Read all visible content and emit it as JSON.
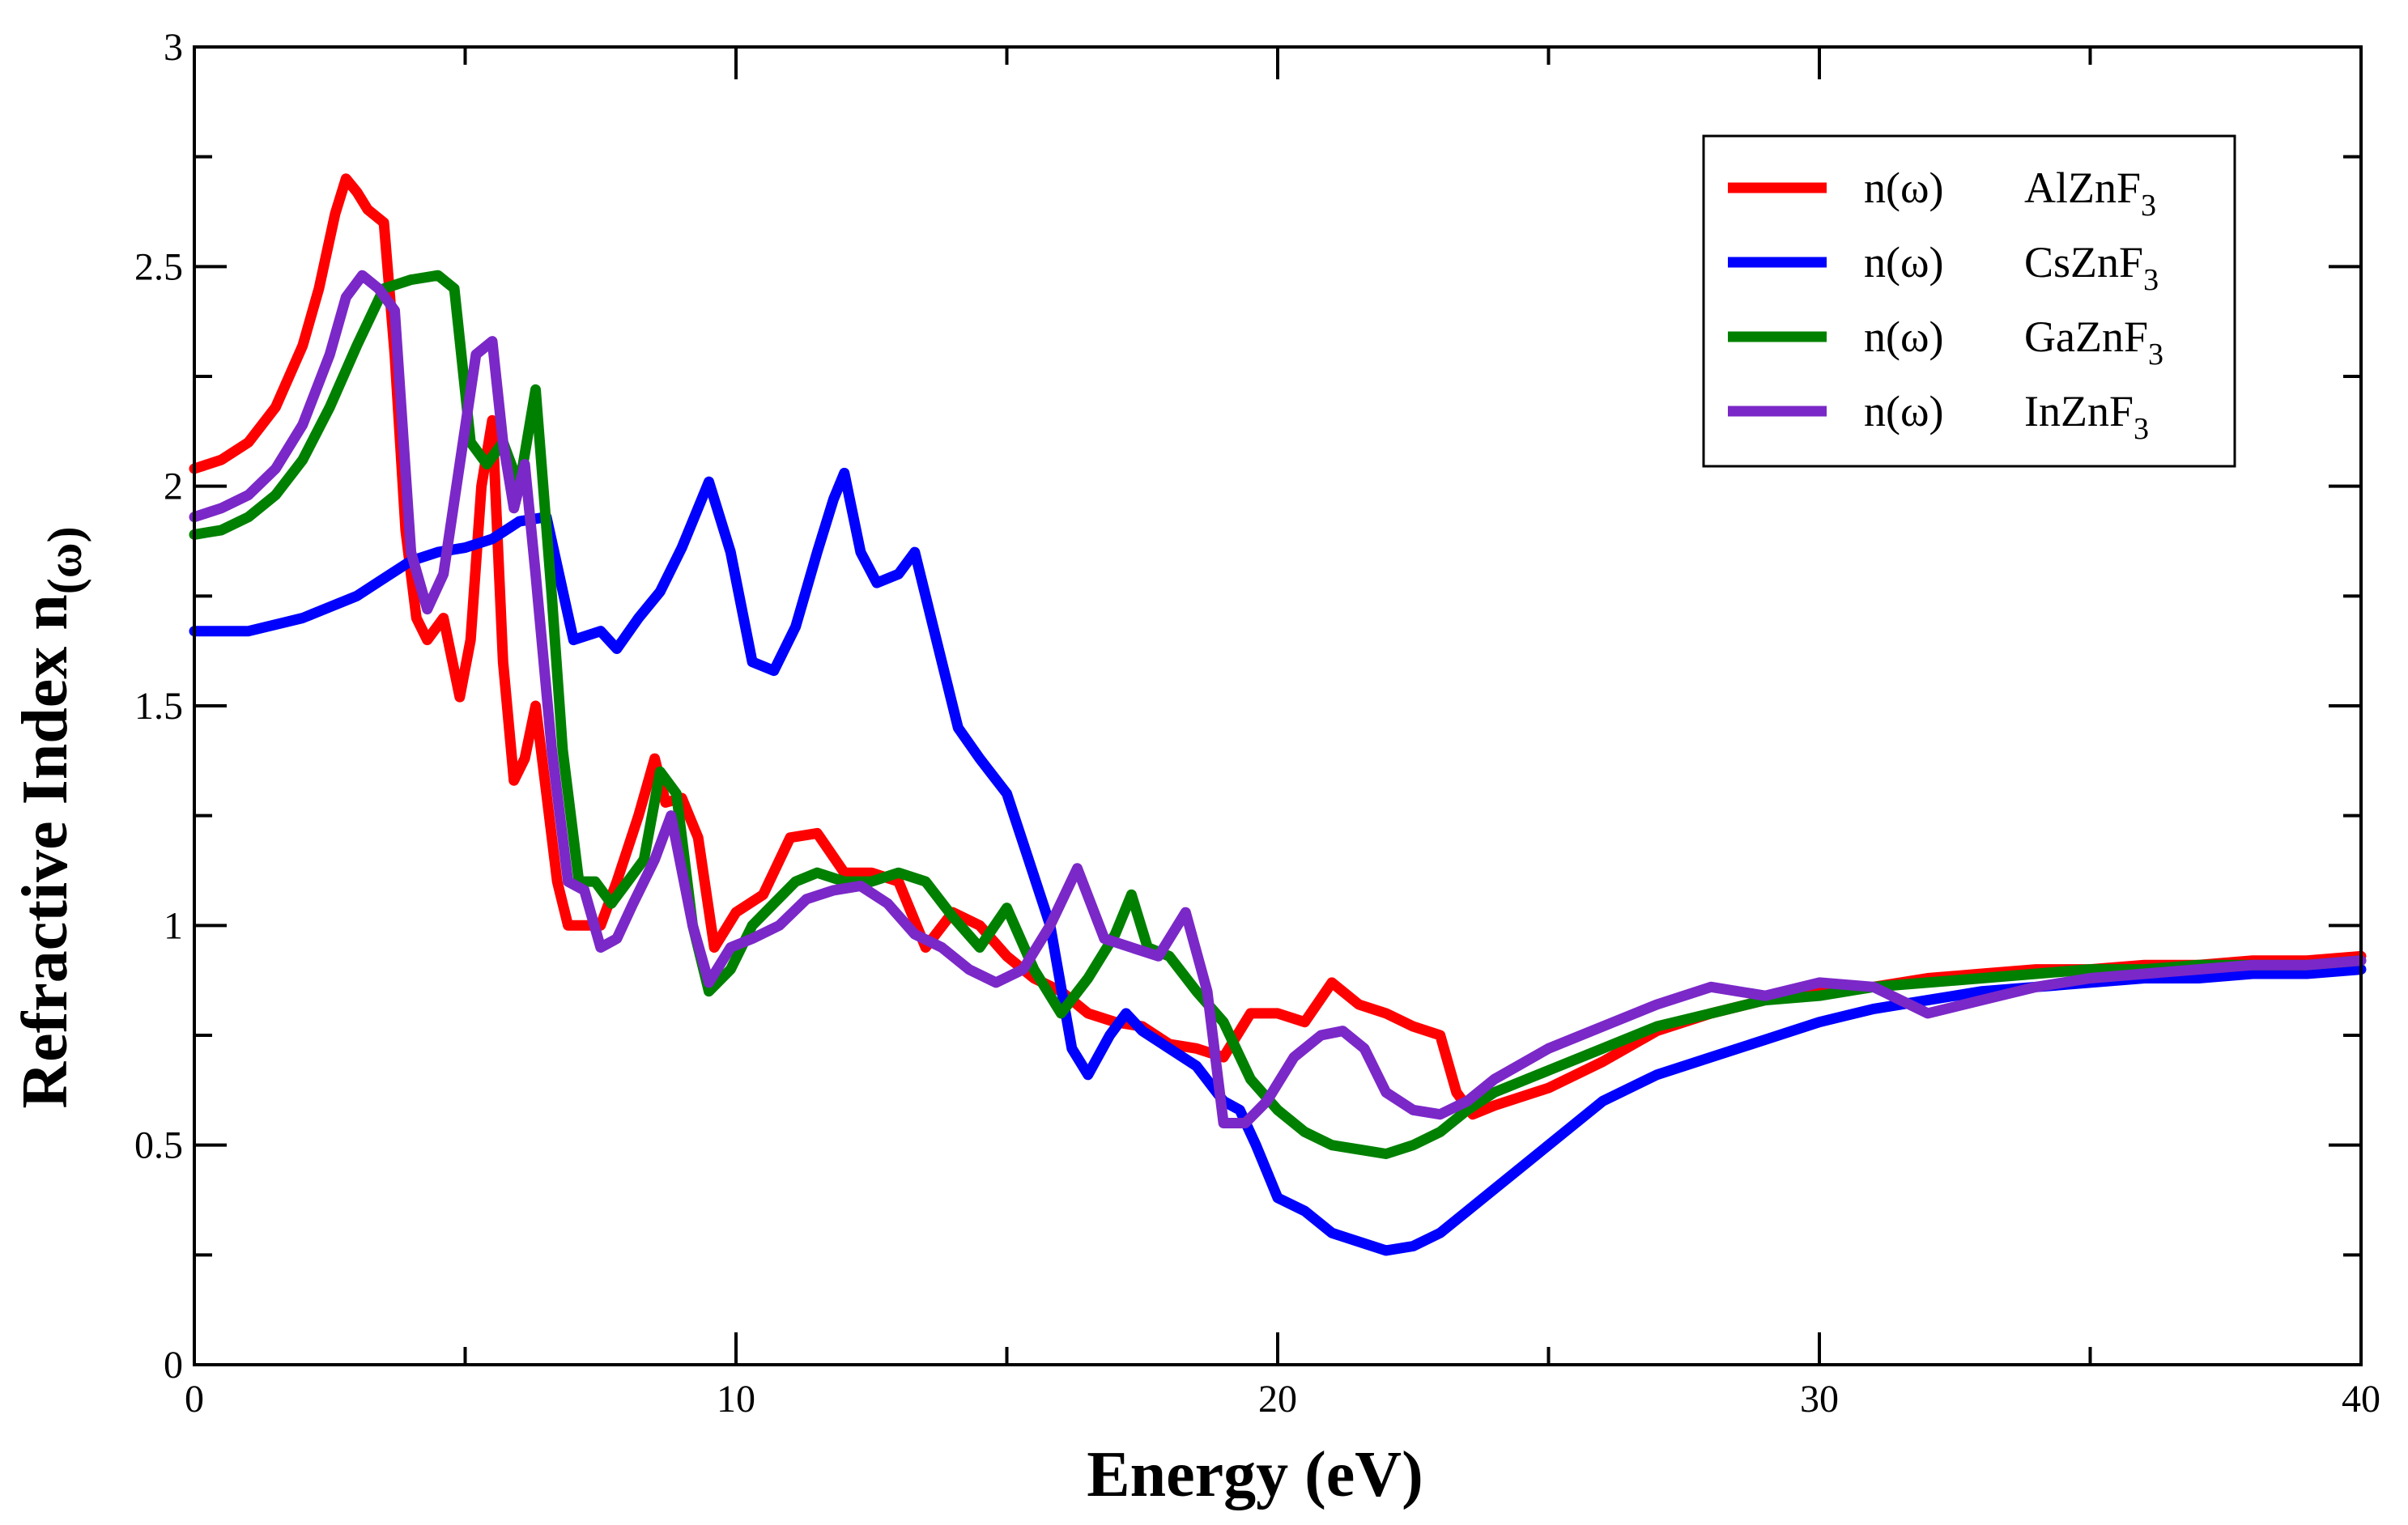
{
  "chart_data": {
    "type": "line",
    "xlabel": "Energy (eV)",
    "ylabel": "Refractive Index n(ω)",
    "ylabel_parts": {
      "main": "Refractive Index n",
      "sub": "(ω)"
    },
    "xlim": [
      0,
      40
    ],
    "ylim": [
      0,
      3
    ],
    "xticks": [
      0,
      10,
      20,
      30,
      40
    ],
    "yticks": [
      0,
      0.5,
      1,
      1.5,
      2,
      2.5,
      3
    ],
    "xtick_labels": [
      "0",
      "10",
      "20",
      "30",
      "40"
    ],
    "ytick_labels": [
      "0",
      "0.5",
      "1",
      "1.5",
      "2",
      "2.5",
      "3"
    ],
    "grid": false,
    "legend_position": "top-right",
    "series": [
      {
        "name": "n(ω) AlZnF3",
        "label_prefix": "n(ω)",
        "label_material": "AlZnF",
        "label_subscript": "3",
        "color": "#ff0000",
        "x": [
          0,
          0.5,
          1,
          1.5,
          2,
          2.3,
          2.6,
          2.8,
          3.0,
          3.2,
          3.5,
          3.7,
          3.9,
          4.1,
          4.3,
          4.6,
          4.9,
          5.1,
          5.3,
          5.5,
          5.7,
          5.9,
          6.1,
          6.3,
          6.5,
          6.7,
          6.9,
          7.2,
          7.5,
          7.8,
          8.2,
          8.5,
          8.7,
          9.0,
          9.3,
          9.6,
          10.0,
          10.5,
          11.0,
          11.5,
          12.0,
          12.5,
          13.0,
          13.5,
          14.0,
          14.5,
          15.0,
          15.5,
          16.0,
          16.5,
          17.0,
          17.5,
          18.0,
          18.5,
          19.0,
          19.5,
          20.0,
          20.5,
          21.0,
          21.5,
          22.0,
          22.5,
          23.0,
          23.3,
          23.6,
          24.0,
          25.0,
          26.0,
          27.0,
          28.0,
          29.0,
          30.0,
          31.0,
          32.0,
          33.0,
          34.0,
          35.0,
          36.0,
          37.0,
          38.0,
          39.0,
          40.0
        ],
        "y": [
          2.04,
          2.06,
          2.1,
          2.18,
          2.32,
          2.45,
          2.62,
          2.7,
          2.67,
          2.63,
          2.6,
          2.3,
          1.9,
          1.7,
          1.65,
          1.7,
          1.52,
          1.65,
          2.0,
          2.15,
          1.6,
          1.33,
          1.38,
          1.5,
          1.3,
          1.1,
          1.0,
          1.0,
          1.0,
          1.1,
          1.25,
          1.38,
          1.28,
          1.29,
          1.2,
          0.95,
          1.03,
          1.07,
          1.2,
          1.21,
          1.12,
          1.12,
          1.1,
          0.95,
          1.03,
          1.0,
          0.93,
          0.88,
          0.85,
          0.8,
          0.78,
          0.77,
          0.73,
          0.72,
          0.7,
          0.8,
          0.8,
          0.78,
          0.87,
          0.82,
          0.8,
          0.77,
          0.75,
          0.62,
          0.57,
          0.59,
          0.63,
          0.69,
          0.76,
          0.8,
          0.83,
          0.85,
          0.86,
          0.88,
          0.89,
          0.9,
          0.9,
          0.91,
          0.91,
          0.92,
          0.92,
          0.93
        ]
      },
      {
        "name": "n(ω) CsZnF3",
        "label_prefix": "n(ω)",
        "label_material": "CsZnF",
        "label_subscript": "3",
        "color": "#0000ff",
        "x": [
          0,
          1,
          2,
          3,
          3.5,
          4.0,
          4.5,
          5.0,
          5.5,
          6.0,
          6.5,
          7.0,
          7.5,
          7.8,
          8.2,
          8.6,
          9.0,
          9.5,
          9.9,
          10.3,
          10.7,
          11.1,
          11.5,
          11.8,
          12.0,
          12.3,
          12.6,
          13.0,
          13.3,
          13.7,
          14.1,
          14.5,
          15.0,
          15.4,
          15.8,
          16.2,
          16.5,
          16.9,
          17.2,
          17.5,
          18.0,
          18.5,
          19.0,
          19.3,
          19.6,
          20.0,
          20.5,
          21.0,
          21.5,
          22.0,
          22.5,
          23.0,
          23.5,
          24.0,
          25.0,
          26.0,
          27.0,
          28.0,
          29.0,
          30.0,
          31.0,
          32.0,
          33.0,
          34.0,
          35.0,
          36.0,
          37.0,
          38.0,
          39.0,
          40.0
        ],
        "y": [
          1.67,
          1.67,
          1.7,
          1.75,
          1.79,
          1.83,
          1.85,
          1.86,
          1.88,
          1.92,
          1.93,
          1.65,
          1.67,
          1.63,
          1.7,
          1.76,
          1.86,
          2.01,
          1.85,
          1.6,
          1.58,
          1.68,
          1.85,
          1.97,
          2.03,
          1.85,
          1.78,
          1.8,
          1.85,
          1.65,
          1.45,
          1.38,
          1.3,
          1.15,
          1.0,
          0.72,
          0.66,
          0.75,
          0.8,
          0.76,
          0.72,
          0.68,
          0.6,
          0.58,
          0.5,
          0.38,
          0.35,
          0.3,
          0.28,
          0.26,
          0.27,
          0.3,
          0.35,
          0.4,
          0.5,
          0.6,
          0.66,
          0.7,
          0.74,
          0.78,
          0.81,
          0.83,
          0.85,
          0.86,
          0.87,
          0.88,
          0.88,
          0.89,
          0.89,
          0.9
        ]
      },
      {
        "name": "n(ω) GaZnF3",
        "label_prefix": "n(ω)",
        "label_material": "GaZnF",
        "label_subscript": "3",
        "color": "#008000",
        "x": [
          0,
          0.5,
          1,
          1.5,
          2,
          2.5,
          3.0,
          3.5,
          4.0,
          4.5,
          4.8,
          5.1,
          5.4,
          5.7,
          6.0,
          6.3,
          6.6,
          6.8,
          7.1,
          7.4,
          7.7,
          8.0,
          8.3,
          8.6,
          8.9,
          9.2,
          9.5,
          9.9,
          10.3,
          10.7,
          11.1,
          11.5,
          12.0,
          12.5,
          13.0,
          13.5,
          14.0,
          14.5,
          15.0,
          15.5,
          16.0,
          16.5,
          17.0,
          17.3,
          17.6,
          18.0,
          18.5,
          19.0,
          19.5,
          20.0,
          20.5,
          21.0,
          21.5,
          22.0,
          22.5,
          23.0,
          23.5,
          24.0,
          25.0,
          26.0,
          27.0,
          28.0,
          29.0,
          30.0,
          31.0,
          32.0,
          33.0,
          34.0,
          35.0,
          36.0,
          37.0,
          38.0,
          39.0,
          40.0
        ],
        "y": [
          1.89,
          1.9,
          1.93,
          1.98,
          2.06,
          2.18,
          2.32,
          2.45,
          2.47,
          2.48,
          2.45,
          2.1,
          2.05,
          2.1,
          2.0,
          2.22,
          1.75,
          1.4,
          1.1,
          1.1,
          1.05,
          1.1,
          1.15,
          1.35,
          1.3,
          1.0,
          0.85,
          0.9,
          1.0,
          1.05,
          1.1,
          1.12,
          1.1,
          1.1,
          1.12,
          1.1,
          1.02,
          0.95,
          1.04,
          0.9,
          0.8,
          0.88,
          0.98,
          1.07,
          0.95,
          0.93,
          0.85,
          0.78,
          0.65,
          0.58,
          0.53,
          0.5,
          0.49,
          0.48,
          0.5,
          0.53,
          0.58,
          0.62,
          0.67,
          0.72,
          0.77,
          0.8,
          0.83,
          0.84,
          0.86,
          0.87,
          0.88,
          0.89,
          0.9,
          0.9,
          0.91,
          0.91,
          0.91,
          0.92
        ]
      },
      {
        "name": "n(ω) InZnF3",
        "label_prefix": "n(ω)",
        "label_material": "InZnF",
        "label_subscript": "3",
        "color": "#7b28c8",
        "x": [
          0,
          0.5,
          1,
          1.5,
          2,
          2.5,
          2.8,
          3.1,
          3.4,
          3.7,
          4.0,
          4.3,
          4.6,
          4.9,
          5.2,
          5.5,
          5.7,
          5.9,
          6.1,
          6.3,
          6.6,
          6.9,
          7.2,
          7.5,
          7.8,
          8.1,
          8.5,
          8.8,
          9.2,
          9.5,
          9.9,
          10.3,
          10.8,
          11.3,
          11.8,
          12.3,
          12.8,
          13.3,
          13.8,
          14.3,
          14.8,
          15.3,
          15.8,
          16.3,
          16.8,
          17.3,
          17.8,
          18.3,
          18.7,
          19.0,
          19.4,
          19.8,
          20.3,
          20.8,
          21.2,
          21.6,
          22.0,
          22.5,
          23.0,
          23.5,
          24.0,
          25.0,
          26.0,
          27.0,
          28.0,
          29.0,
          30.0,
          31.0,
          32.0,
          33.0,
          34.0,
          35.0,
          36.0,
          37.0,
          38.0,
          39.0,
          40.0
        ],
        "y": [
          1.93,
          1.95,
          1.98,
          2.04,
          2.14,
          2.3,
          2.43,
          2.48,
          2.45,
          2.4,
          1.85,
          1.72,
          1.8,
          2.05,
          2.3,
          2.33,
          2.1,
          1.95,
          2.05,
          1.8,
          1.4,
          1.1,
          1.08,
          0.95,
          0.97,
          1.05,
          1.15,
          1.25,
          1.0,
          0.87,
          0.95,
          0.97,
          1.0,
          1.06,
          1.08,
          1.09,
          1.05,
          0.98,
          0.95,
          0.9,
          0.87,
          0.9,
          1.0,
          1.13,
          0.97,
          0.95,
          0.93,
          1.03,
          0.85,
          0.55,
          0.55,
          0.6,
          0.7,
          0.75,
          0.76,
          0.72,
          0.62,
          0.58,
          0.57,
          0.6,
          0.65,
          0.72,
          0.77,
          0.82,
          0.86,
          0.84,
          0.87,
          0.86,
          0.8,
          0.83,
          0.86,
          0.88,
          0.89,
          0.9,
          0.91,
          0.91,
          0.92
        ]
      }
    ]
  }
}
